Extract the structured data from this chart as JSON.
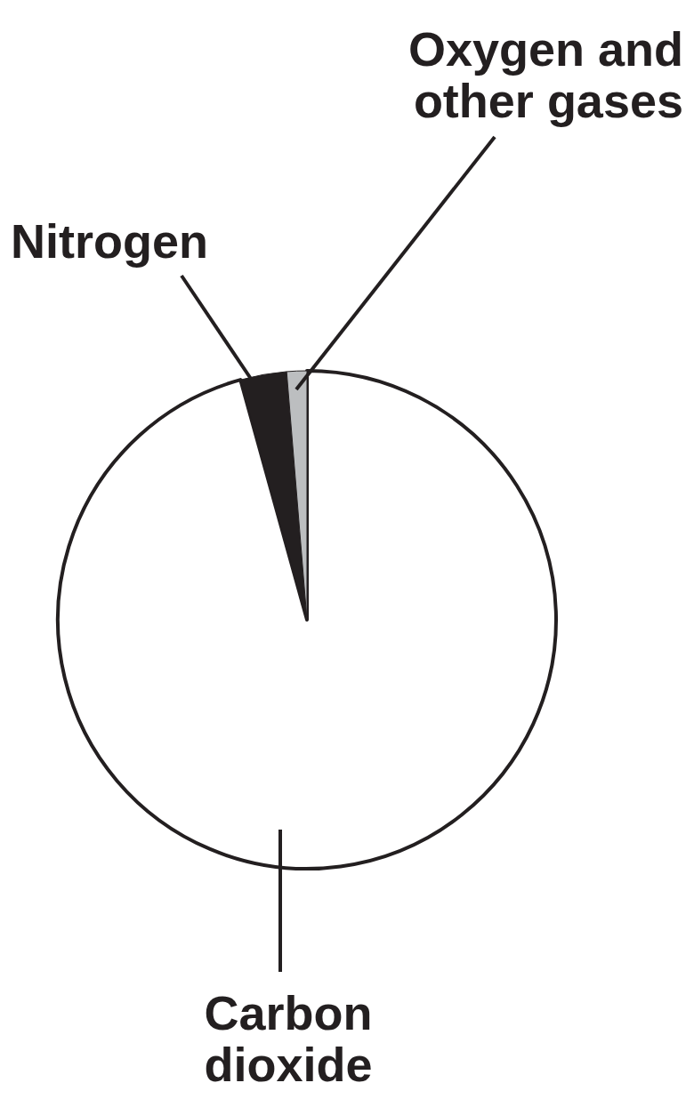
{
  "chart_data": {
    "type": "pie",
    "categories": [
      "Carbon dioxide",
      "Nitrogen",
      "Oxygen and other gases"
    ],
    "values": [
      95.7,
      3.0,
      1.3
    ],
    "colors": [
      "#ffffff",
      "#231f20",
      "#bcbec0"
    ]
  }
}
